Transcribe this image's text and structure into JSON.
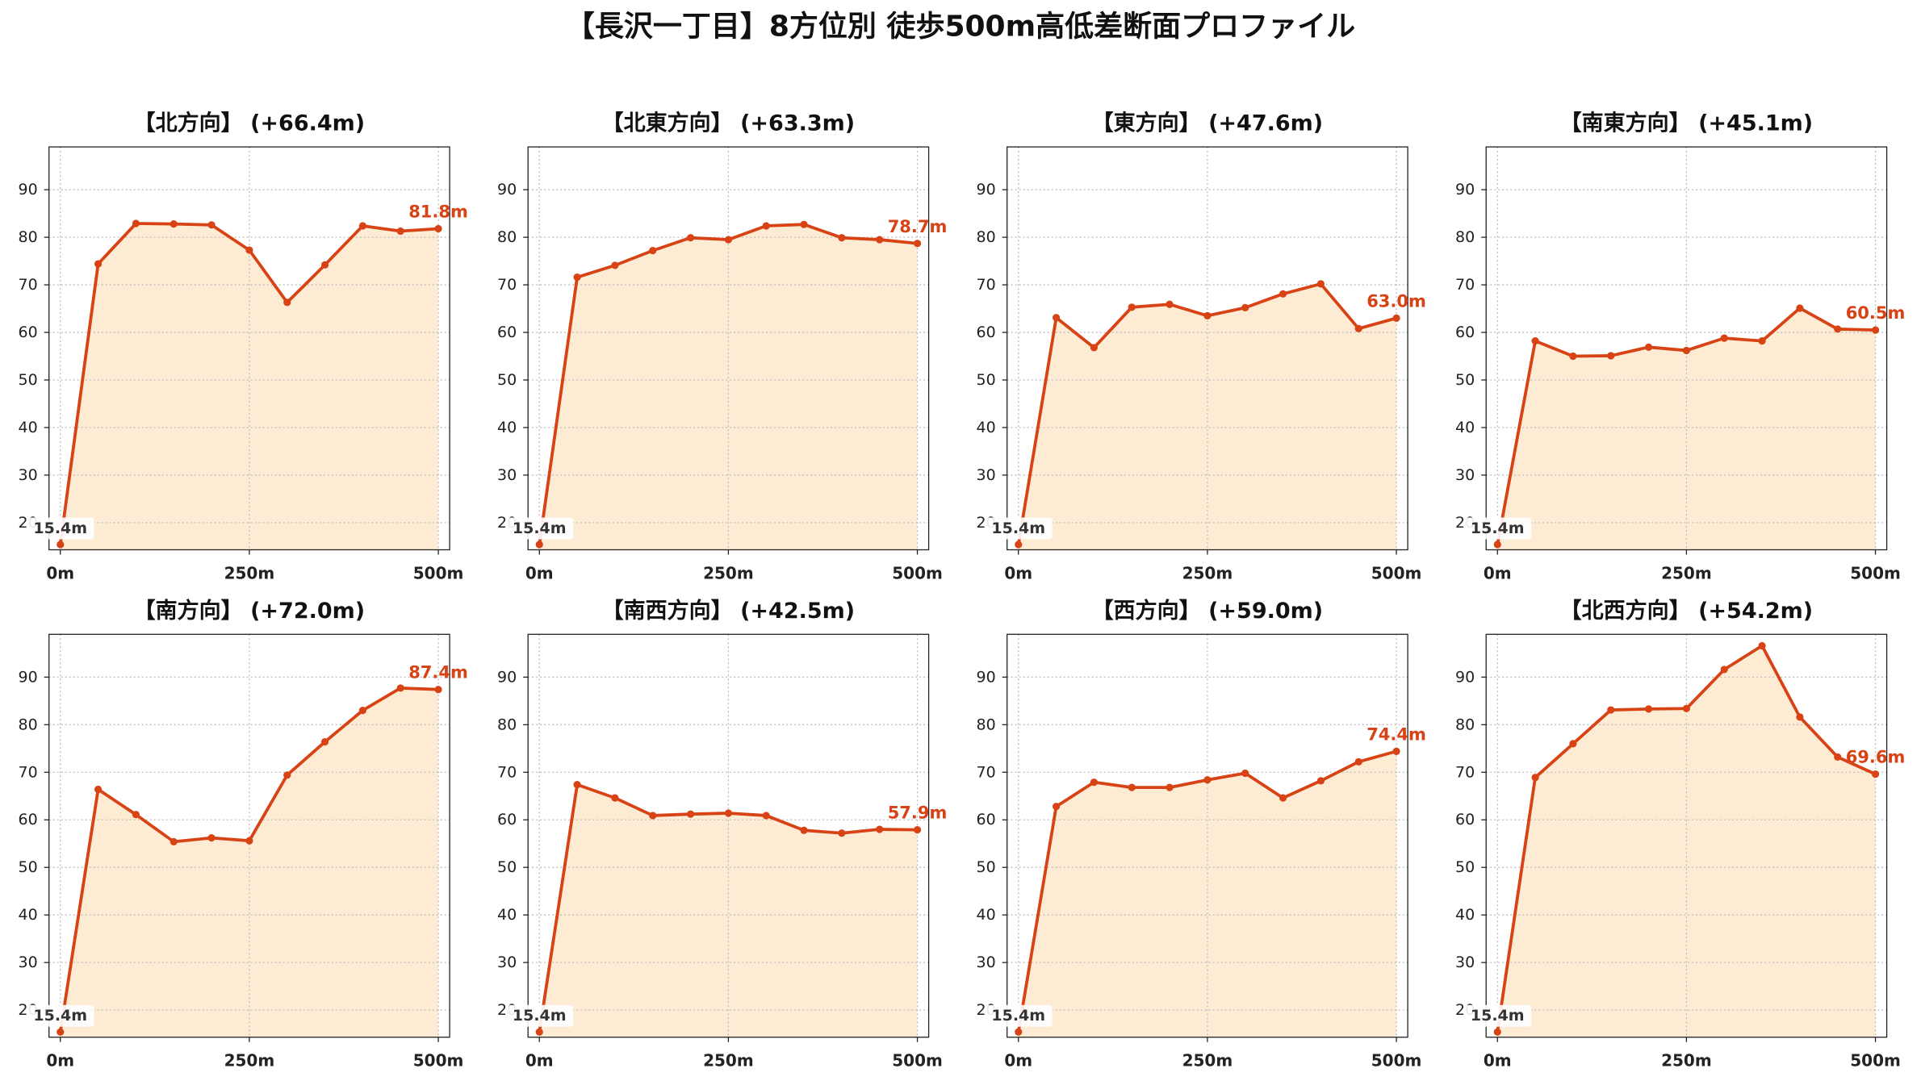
{
  "title": "【長沢一丁目】8方位別 徒歩500m高低差断面プロファイル",
  "colors": {
    "line": "#d84315",
    "fill": "#fdecd3",
    "grid": "#bdbdbd",
    "start_label": "#333333",
    "start_label_box": "#ffffff"
  },
  "chart_data": [
    {
      "type": "area",
      "title": "【北方向】 (+66.4m)",
      "x": [
        0,
        50,
        100,
        150,
        200,
        250,
        300,
        350,
        400,
        450,
        500
      ],
      "y": [
        15.4,
        74.4,
        82.9,
        82.8,
        82.6,
        77.3,
        66.3,
        74.2,
        82.4,
        81.3,
        81.8
      ],
      "xtick_values": [
        0,
        250,
        500
      ],
      "xtick_labels": [
        "0m",
        "250m",
        "500m"
      ],
      "yticks": [
        20,
        30,
        40,
        50,
        60,
        70,
        80,
        90
      ],
      "xlim": [
        -15,
        515
      ],
      "ylim": [
        14.3,
        99.0
      ],
      "grid": true,
      "start_label": "15.4m",
      "end_label": "81.8m"
    },
    {
      "type": "area",
      "title": "【北東方向】 (+63.3m)",
      "x": [
        0,
        50,
        100,
        150,
        200,
        250,
        300,
        350,
        400,
        450,
        500
      ],
      "y": [
        15.4,
        71.6,
        74.1,
        77.2,
        79.9,
        79.5,
        82.4,
        82.7,
        79.9,
        79.5,
        78.7
      ],
      "xtick_values": [
        0,
        250,
        500
      ],
      "xtick_labels": [
        "0m",
        "250m",
        "500m"
      ],
      "yticks": [
        20,
        30,
        40,
        50,
        60,
        70,
        80,
        90
      ],
      "xlim": [
        -15,
        515
      ],
      "ylim": [
        14.3,
        99.0
      ],
      "grid": true,
      "start_label": "15.4m",
      "end_label": "78.7m"
    },
    {
      "type": "area",
      "title": "【東方向】 (+47.6m)",
      "x": [
        0,
        50,
        100,
        150,
        200,
        250,
        300,
        350,
        400,
        450,
        500
      ],
      "y": [
        15.4,
        63.1,
        56.8,
        65.3,
        65.9,
        63.5,
        65.2,
        68.1,
        70.2,
        60.8,
        63.0
      ],
      "xtick_values": [
        0,
        250,
        500
      ],
      "xtick_labels": [
        "0m",
        "250m",
        "500m"
      ],
      "yticks": [
        20,
        30,
        40,
        50,
        60,
        70,
        80,
        90
      ],
      "xlim": [
        -15,
        515
      ],
      "ylim": [
        14.3,
        99.0
      ],
      "grid": true,
      "start_label": "15.4m",
      "end_label": "63.0m"
    },
    {
      "type": "area",
      "title": "【南東方向】 (+45.1m)",
      "x": [
        0,
        50,
        100,
        150,
        200,
        250,
        300,
        350,
        400,
        450,
        500
      ],
      "y": [
        15.4,
        58.2,
        55.0,
        55.1,
        56.9,
        56.2,
        58.8,
        58.2,
        65.1,
        60.7,
        60.5
      ],
      "xtick_values": [
        0,
        250,
        500
      ],
      "xtick_labels": [
        "0m",
        "250m",
        "500m"
      ],
      "yticks": [
        20,
        30,
        40,
        50,
        60,
        70,
        80,
        90
      ],
      "xlim": [
        -15,
        515
      ],
      "ylim": [
        14.3,
        99.0
      ],
      "grid": true,
      "start_label": "15.4m",
      "end_label": "60.5m"
    },
    {
      "type": "area",
      "title": "【南方向】 (+72.0m)",
      "x": [
        0,
        50,
        100,
        150,
        200,
        250,
        300,
        350,
        400,
        450,
        500
      ],
      "y": [
        15.4,
        66.4,
        61.1,
        55.4,
        56.2,
        55.6,
        69.4,
        76.4,
        83.0,
        87.7,
        87.4
      ],
      "xtick_values": [
        0,
        250,
        500
      ],
      "xtick_labels": [
        "0m",
        "250m",
        "500m"
      ],
      "yticks": [
        20,
        30,
        40,
        50,
        60,
        70,
        80,
        90
      ],
      "xlim": [
        -15,
        515
      ],
      "ylim": [
        14.3,
        99.0
      ],
      "grid": true,
      "start_label": "15.4m",
      "end_label": "87.4m"
    },
    {
      "type": "area",
      "title": "【南西方向】 (+42.5m)",
      "x": [
        0,
        50,
        100,
        150,
        200,
        250,
        300,
        350,
        400,
        450,
        500
      ],
      "y": [
        15.4,
        67.4,
        64.6,
        60.9,
        61.2,
        61.4,
        60.9,
        57.8,
        57.2,
        58.0,
        57.9
      ],
      "xtick_values": [
        0,
        250,
        500
      ],
      "xtick_labels": [
        "0m",
        "250m",
        "500m"
      ],
      "yticks": [
        20,
        30,
        40,
        50,
        60,
        70,
        80,
        90
      ],
      "xlim": [
        -15,
        515
      ],
      "ylim": [
        14.3,
        99.0
      ],
      "grid": true,
      "start_label": "15.4m",
      "end_label": "57.9m"
    },
    {
      "type": "area",
      "title": "【西方向】 (+59.0m)",
      "x": [
        0,
        50,
        100,
        150,
        200,
        250,
        300,
        350,
        400,
        450,
        500
      ],
      "y": [
        15.4,
        62.8,
        67.9,
        66.8,
        66.8,
        68.4,
        69.8,
        64.6,
        68.2,
        72.2,
        74.4
      ],
      "xtick_values": [
        0,
        250,
        500
      ],
      "xtick_labels": [
        "0m",
        "250m",
        "500m"
      ],
      "yticks": [
        20,
        30,
        40,
        50,
        60,
        70,
        80,
        90
      ],
      "xlim": [
        -15,
        515
      ],
      "ylim": [
        14.3,
        99.0
      ],
      "grid": true,
      "start_label": "15.4m",
      "end_label": "74.4m"
    },
    {
      "type": "area",
      "title": "【北西方向】 (+54.2m)",
      "x": [
        0,
        50,
        100,
        150,
        200,
        250,
        300,
        350,
        400,
        450,
        500
      ],
      "y": [
        15.4,
        68.9,
        76.0,
        83.1,
        83.3,
        83.4,
        91.6,
        96.6,
        81.6,
        73.2,
        69.6
      ],
      "xtick_values": [
        0,
        250,
        500
      ],
      "xtick_labels": [
        "0m",
        "250m",
        "500m"
      ],
      "yticks": [
        20,
        30,
        40,
        50,
        60,
        70,
        80,
        90
      ],
      "xlim": [
        -15,
        515
      ],
      "ylim": [
        14.3,
        99.0
      ],
      "grid": true,
      "start_label": "15.4m",
      "end_label": "69.6m"
    }
  ]
}
